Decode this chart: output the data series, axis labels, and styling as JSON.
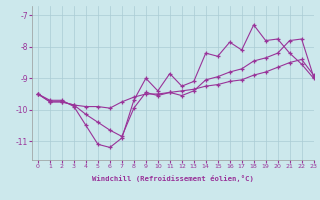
{
  "xlabel": "Windchill (Refroidissement éolien,°C)",
  "background_color": "#cce8ec",
  "grid_color": "#aaccd4",
  "line_color": "#993399",
  "xlim": [
    -0.5,
    23
  ],
  "ylim": [
    -11.6,
    -6.7
  ],
  "yticks": [
    -11,
    -10,
    -9,
    -8,
    -7
  ],
  "xticks": [
    0,
    1,
    2,
    3,
    4,
    5,
    6,
    7,
    8,
    9,
    10,
    11,
    12,
    13,
    14,
    15,
    16,
    17,
    18,
    19,
    20,
    21,
    22,
    23
  ],
  "x": [
    0,
    1,
    2,
    3,
    4,
    5,
    6,
    7,
    8,
    9,
    10,
    11,
    12,
    13,
    14,
    15,
    16,
    17,
    18,
    19,
    20,
    21,
    22,
    23
  ],
  "line1": [
    -9.5,
    -9.7,
    -9.7,
    -9.9,
    -10.5,
    -11.1,
    -11.2,
    -10.9,
    -9.7,
    -9.0,
    -9.4,
    -8.85,
    -9.25,
    -9.1,
    -8.2,
    -8.3,
    -7.85,
    -8.1,
    -7.3,
    -7.8,
    -7.75,
    -8.2,
    -8.55,
    -9.0
  ],
  "line2": [
    -9.5,
    -9.75,
    -9.75,
    -9.85,
    -9.9,
    -9.9,
    -9.95,
    -9.75,
    -9.6,
    -9.5,
    -9.5,
    -9.45,
    -9.4,
    -9.35,
    -9.25,
    -9.2,
    -9.1,
    -9.05,
    -8.9,
    -8.8,
    -8.65,
    -8.5,
    -8.4,
    -8.9
  ],
  "line3": [
    -9.5,
    -9.75,
    -9.75,
    -9.85,
    -10.15,
    -10.4,
    -10.65,
    -10.85,
    -9.95,
    -9.45,
    -9.55,
    -9.45,
    -9.55,
    -9.4,
    -9.05,
    -8.95,
    -8.8,
    -8.7,
    -8.45,
    -8.35,
    -8.2,
    -7.8,
    -7.75,
    -8.95
  ]
}
